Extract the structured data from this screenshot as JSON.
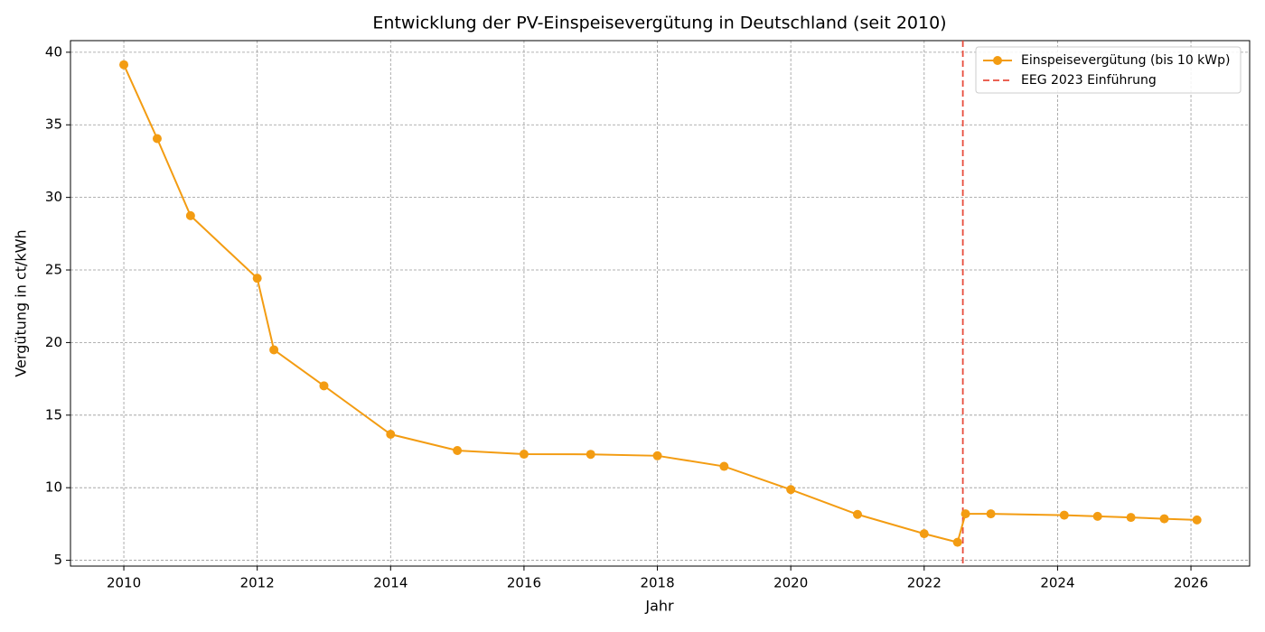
{
  "chart_data": {
    "type": "line",
    "title": "Entwicklung der PV-Einspeisevergütung in Deutschland (seit 2010)",
    "xlabel": "Jahr",
    "ylabel": "Vergütung in ct/kWh",
    "x": [
      2010,
      2010.5,
      2011,
      2012,
      2012.25,
      2013,
      2014,
      2015,
      2016,
      2017,
      2018,
      2019,
      2020,
      2021,
      2022,
      2022.5,
      2022.62,
      2023,
      2024.1,
      2024.6,
      2025.1,
      2025.6,
      2026.09
    ],
    "series": [
      {
        "name": "Einspeisevergütung (bis 10 kWp)",
        "color": "#f39c12",
        "values": [
          39.14,
          34.05,
          28.74,
          24.43,
          19.5,
          17.02,
          13.68,
          12.56,
          12.31,
          12.3,
          12.2,
          11.47,
          9.87,
          8.16,
          6.83,
          6.24,
          8.2,
          8.2,
          8.11,
          8.03,
          7.95,
          7.86,
          7.78
        ]
      }
    ],
    "vline": {
      "x": 2022.58,
      "label": "EEG 2023 Einführung",
      "color": "#e74c3c"
    },
    "xlim": [
      2009.2,
      2026.88
    ],
    "ylim": [
      4.6,
      40.8
    ],
    "xticks": [
      2010,
      2012,
      2014,
      2016,
      2018,
      2020,
      2022,
      2024,
      2026
    ],
    "yticks": [
      5,
      10,
      15,
      20,
      25,
      30,
      35,
      40
    ],
    "grid": true,
    "legend": "upper right"
  }
}
